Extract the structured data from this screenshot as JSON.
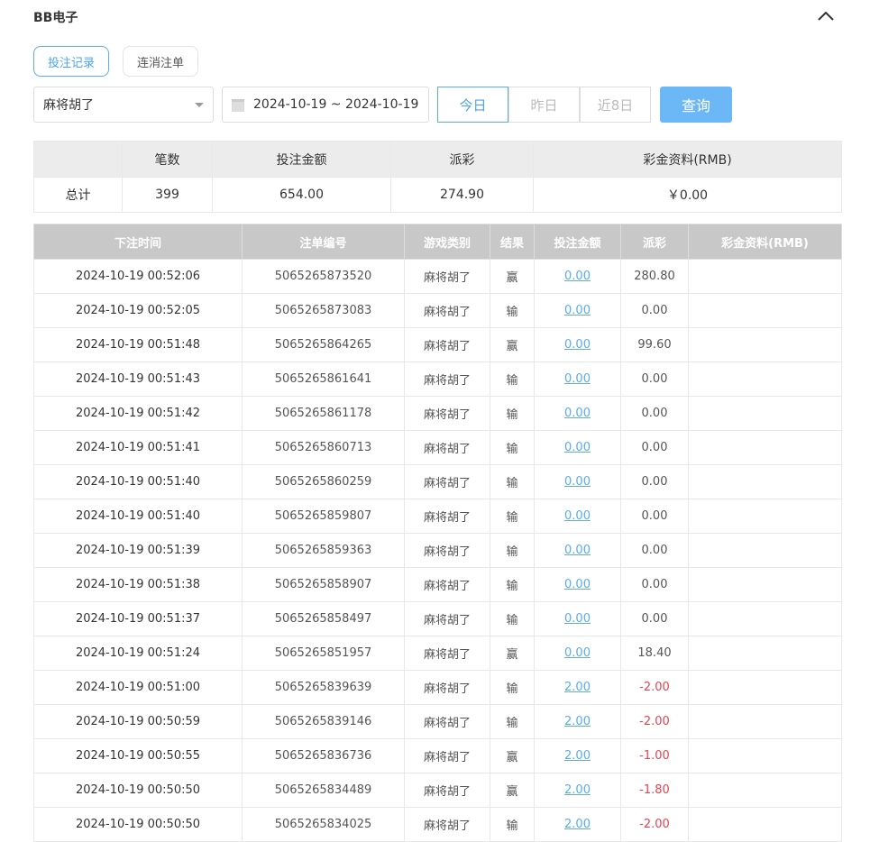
{
  "header": {
    "title": "BB电子",
    "collapse_icon": "chevron-up-icon"
  },
  "tabs": [
    {
      "label": "投注记录",
      "active": true
    },
    {
      "label": "连消注单",
      "active": false
    }
  ],
  "filters": {
    "game_select": "麻将胡了",
    "date_range": "2024-10-19 ~ 2024-10-19",
    "quick": [
      "今日",
      "昨日",
      "近8日"
    ],
    "query_label": "查询"
  },
  "colors": {
    "accent": "#5aacf0",
    "negative": "#e8424f",
    "query_bg": "#6cb8f6"
  },
  "summary": {
    "headers": [
      "",
      "笔数",
      "投注金额",
      "派彩",
      "彩金资料(RMB)"
    ],
    "row": [
      "总计",
      "399",
      "654.00",
      "274.90",
      "￥0.00"
    ]
  },
  "records": {
    "headers": [
      "下注时间",
      "注单编号",
      "游戏类别",
      "结果",
      "投注金额",
      "派彩",
      "彩金资料(RMB)"
    ],
    "rows": [
      [
        "2024-10-19 00:52:06",
        "5065265873520",
        "麻将胡了",
        "赢",
        "0.00",
        "280.80",
        ""
      ],
      [
        "2024-10-19 00:52:05",
        "5065265873083",
        "麻将胡了",
        "输",
        "0.00",
        "0.00",
        ""
      ],
      [
        "2024-10-19 00:51:48",
        "5065265864265",
        "麻将胡了",
        "赢",
        "0.00",
        "99.60",
        ""
      ],
      [
        "2024-10-19 00:51:43",
        "5065265861641",
        "麻将胡了",
        "输",
        "0.00",
        "0.00",
        ""
      ],
      [
        "2024-10-19 00:51:42",
        "5065265861178",
        "麻将胡了",
        "输",
        "0.00",
        "0.00",
        ""
      ],
      [
        "2024-10-19 00:51:41",
        "5065265860713",
        "麻将胡了",
        "输",
        "0.00",
        "0.00",
        ""
      ],
      [
        "2024-10-19 00:51:40",
        "5065265860259",
        "麻将胡了",
        "输",
        "0.00",
        "0.00",
        ""
      ],
      [
        "2024-10-19 00:51:40",
        "5065265859807",
        "麻将胡了",
        "输",
        "0.00",
        "0.00",
        ""
      ],
      [
        "2024-10-19 00:51:39",
        "5065265859363",
        "麻将胡了",
        "输",
        "0.00",
        "0.00",
        ""
      ],
      [
        "2024-10-19 00:51:38",
        "5065265858907",
        "麻将胡了",
        "输",
        "0.00",
        "0.00",
        ""
      ],
      [
        "2024-10-19 00:51:37",
        "5065265858497",
        "麻将胡了",
        "输",
        "0.00",
        "0.00",
        ""
      ],
      [
        "2024-10-19 00:51:24",
        "5065265851957",
        "麻将胡了",
        "赢",
        "0.00",
        "18.40",
        ""
      ],
      [
        "2024-10-19 00:51:00",
        "5065265839639",
        "麻将胡了",
        "输",
        "2.00",
        "-2.00",
        ""
      ],
      [
        "2024-10-19 00:50:59",
        "5065265839146",
        "麻将胡了",
        "输",
        "2.00",
        "-2.00",
        ""
      ],
      [
        "2024-10-19 00:50:55",
        "5065265836736",
        "麻将胡了",
        "赢",
        "2.00",
        "-1.00",
        ""
      ],
      [
        "2024-10-19 00:50:50",
        "5065265834489",
        "麻将胡了",
        "赢",
        "2.00",
        "-1.80",
        ""
      ],
      [
        "2024-10-19 00:50:50",
        "5065265834025",
        "麻将胡了",
        "输",
        "2.00",
        "-2.00",
        ""
      ]
    ]
  }
}
